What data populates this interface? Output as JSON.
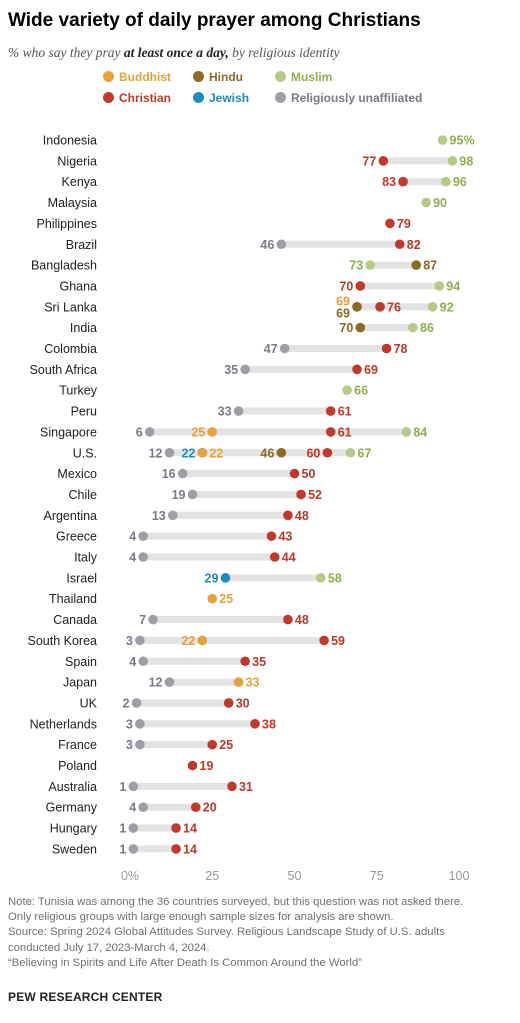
{
  "title": "Wide variety of daily prayer among Christians",
  "subtitle_prefix": "% who say they pray ",
  "subtitle_bold": "at least once a day,",
  "subtitle_suffix": " by religious identity",
  "colors": {
    "Buddhist": "#e8a23a",
    "Hindu": "#8a6a25",
    "Muslim": "#b5ca85",
    "Christian": "#c0392b",
    "Jewish": "#1c8dbf",
    "Religiously unaffiliated": "#a09ca8",
    "range_line": "#e3e3e3",
    "axis_text": "#999999"
  },
  "label_colors": {
    "Buddhist": "#e8a23a",
    "Hindu": "#8a6a25",
    "Muslim": "#8fae4c",
    "Christian": "#c0392b",
    "Jewish": "#1c8dbf",
    "Religiously unaffiliated": "#7d7886"
  },
  "legend": [
    {
      "name": "Buddhist",
      "label": "Buddhist"
    },
    {
      "name": "Hindu",
      "label": "Hindu"
    },
    {
      "name": "Muslim",
      "label": "Muslim"
    },
    {
      "name": "Christian",
      "label": "Christian"
    },
    {
      "name": "Jewish",
      "label": "Jewish"
    },
    {
      "name": "Religiously unaffiliated",
      "label": "Religiously unaffiliated"
    }
  ],
  "chart_data": {
    "type": "scatter",
    "subtype": "dot plot",
    "xlim": [
      0,
      100
    ],
    "ticks": [
      0,
      25,
      50,
      75,
      100
    ],
    "tick_labels": [
      "0%",
      "25",
      "50",
      "75",
      "100"
    ],
    "grid": false,
    "legend_position": "top",
    "countries": [
      "Indonesia",
      "Nigeria",
      "Kenya",
      "Malaysia",
      "Philippines",
      "Brazil",
      "Bangladesh",
      "Ghana",
      "Sri Lanka",
      "India",
      "Colombia",
      "South Africa",
      "Turkey",
      "Peru",
      "Singapore",
      "U.S.",
      "Mexico",
      "Chile",
      "Argentina",
      "Greece",
      "Italy",
      "Israel",
      "Thailand",
      "Canada",
      "South Korea",
      "Spain",
      "Japan",
      "UK",
      "Netherlands",
      "France",
      "Poland",
      "Australia",
      "Germany",
      "Hungary",
      "Sweden"
    ],
    "rows": [
      {
        "country": "Indonesia",
        "points": [
          {
            "group": "Muslim",
            "value": 95,
            "label": "95%",
            "side": "right"
          }
        ]
      },
      {
        "country": "Nigeria",
        "points": [
          {
            "group": "Christian",
            "value": 77,
            "label": "77",
            "side": "left"
          },
          {
            "group": "Muslim",
            "value": 98,
            "label": "98",
            "side": "right"
          }
        ]
      },
      {
        "country": "Kenya",
        "points": [
          {
            "group": "Christian",
            "value": 83,
            "label": "83",
            "side": "left"
          },
          {
            "group": "Muslim",
            "value": 96,
            "label": "96",
            "side": "right"
          }
        ]
      },
      {
        "country": "Malaysia",
        "points": [
          {
            "group": "Muslim",
            "value": 90,
            "label": "90",
            "side": "right"
          }
        ]
      },
      {
        "country": "Philippines",
        "points": [
          {
            "group": "Christian",
            "value": 79,
            "label": "79",
            "side": "right"
          }
        ]
      },
      {
        "country": "Brazil",
        "points": [
          {
            "group": "Religiously unaffiliated",
            "value": 46,
            "label": "46",
            "side": "left"
          },
          {
            "group": "Christian",
            "value": 82,
            "label": "82",
            "side": "right"
          }
        ]
      },
      {
        "country": "Bangladesh",
        "points": [
          {
            "group": "Muslim",
            "value": 73,
            "label": "73",
            "side": "left"
          },
          {
            "group": "Hindu",
            "value": 87,
            "label": "87",
            "side": "right"
          }
        ]
      },
      {
        "country": "Ghana",
        "points": [
          {
            "group": "Christian",
            "value": 70,
            "label": "70",
            "side": "left"
          },
          {
            "group": "Muslim",
            "value": 94,
            "label": "94",
            "side": "right"
          }
        ]
      },
      {
        "country": "Sri Lanka",
        "points": [
          {
            "group": "Buddhist",
            "value": 69,
            "label": "69",
            "side": "left",
            "dy": -6
          },
          {
            "group": "Hindu",
            "value": 69,
            "label": "69",
            "side": "left",
            "dy": 6
          },
          {
            "group": "Christian",
            "value": 76,
            "label": "76",
            "side": "right"
          },
          {
            "group": "Muslim",
            "value": 92,
            "label": "92",
            "side": "right"
          }
        ]
      },
      {
        "country": "India",
        "points": [
          {
            "group": "Hindu",
            "value": 70,
            "label": "70",
            "side": "left"
          },
          {
            "group": "Muslim",
            "value": 86,
            "label": "86",
            "side": "right"
          }
        ]
      },
      {
        "country": "Colombia",
        "points": [
          {
            "group": "Religiously unaffiliated",
            "value": 47,
            "label": "47",
            "side": "left"
          },
          {
            "group": "Christian",
            "value": 78,
            "label": "78",
            "side": "right"
          }
        ]
      },
      {
        "country": "South Africa",
        "points": [
          {
            "group": "Religiously unaffiliated",
            "value": 35,
            "label": "35",
            "side": "left"
          },
          {
            "group": "Christian",
            "value": 69,
            "label": "69",
            "side": "right"
          }
        ]
      },
      {
        "country": "Turkey",
        "points": [
          {
            "group": "Muslim",
            "value": 66,
            "label": "66",
            "side": "right"
          }
        ]
      },
      {
        "country": "Peru",
        "points": [
          {
            "group": "Religiously unaffiliated",
            "value": 33,
            "label": "33",
            "side": "left"
          },
          {
            "group": "Christian",
            "value": 61,
            "label": "61",
            "side": "right"
          }
        ]
      },
      {
        "country": "Singapore",
        "points": [
          {
            "group": "Religiously unaffiliated",
            "value": 6,
            "label": "6",
            "side": "left"
          },
          {
            "group": "Buddhist",
            "value": 25,
            "label": "25",
            "side": "left"
          },
          {
            "group": "Christian",
            "value": 61,
            "label": "61",
            "side": "right"
          },
          {
            "group": "Muslim",
            "value": 84,
            "label": "84",
            "side": "right"
          }
        ]
      },
      {
        "country": "U.S.",
        "points": [
          {
            "group": "Religiously unaffiliated",
            "value": 12,
            "label": "12",
            "side": "left"
          },
          {
            "group": "Jewish",
            "value": 22,
            "label": "22",
            "side": "left"
          },
          {
            "group": "Buddhist",
            "value": 22,
            "label": "22",
            "side": "right"
          },
          {
            "group": "Hindu",
            "value": 46,
            "label": "46",
            "side": "left"
          },
          {
            "group": "Christian",
            "value": 60,
            "label": "60",
            "side": "left"
          },
          {
            "group": "Muslim",
            "value": 67,
            "label": "67",
            "side": "right"
          }
        ]
      },
      {
        "country": "Mexico",
        "points": [
          {
            "group": "Religiously unaffiliated",
            "value": 16,
            "label": "16",
            "side": "left"
          },
          {
            "group": "Christian",
            "value": 50,
            "label": "50",
            "side": "right"
          }
        ]
      },
      {
        "country": "Chile",
        "points": [
          {
            "group": "Religiously unaffiliated",
            "value": 19,
            "label": "19",
            "side": "left"
          },
          {
            "group": "Christian",
            "value": 52,
            "label": "52",
            "side": "right"
          }
        ]
      },
      {
        "country": "Argentina",
        "points": [
          {
            "group": "Religiously unaffiliated",
            "value": 13,
            "label": "13",
            "side": "left"
          },
          {
            "group": "Christian",
            "value": 48,
            "label": "48",
            "side": "right"
          }
        ]
      },
      {
        "country": "Greece",
        "points": [
          {
            "group": "Religiously unaffiliated",
            "value": 4,
            "label": "4",
            "side": "left"
          },
          {
            "group": "Christian",
            "value": 43,
            "label": "43",
            "side": "right"
          }
        ]
      },
      {
        "country": "Italy",
        "points": [
          {
            "group": "Religiously unaffiliated",
            "value": 4,
            "label": "4",
            "side": "left"
          },
          {
            "group": "Christian",
            "value": 44,
            "label": "44",
            "side": "right"
          }
        ]
      },
      {
        "country": "Israel",
        "points": [
          {
            "group": "Jewish",
            "value": 29,
            "label": "29",
            "side": "left"
          },
          {
            "group": "Muslim",
            "value": 58,
            "label": "58",
            "side": "right"
          }
        ]
      },
      {
        "country": "Thailand",
        "points": [
          {
            "group": "Buddhist",
            "value": 25,
            "label": "25",
            "side": "right"
          }
        ]
      },
      {
        "country": "Canada",
        "points": [
          {
            "group": "Religiously unaffiliated",
            "value": 7,
            "label": "7",
            "side": "left"
          },
          {
            "group": "Christian",
            "value": 48,
            "label": "48",
            "side": "right"
          }
        ]
      },
      {
        "country": "South Korea",
        "points": [
          {
            "group": "Religiously unaffiliated",
            "value": 3,
            "label": "3",
            "side": "left"
          },
          {
            "group": "Buddhist",
            "value": 22,
            "label": "22",
            "side": "left"
          },
          {
            "group": "Christian",
            "value": 59,
            "label": "59",
            "side": "right"
          }
        ]
      },
      {
        "country": "Spain",
        "points": [
          {
            "group": "Religiously unaffiliated",
            "value": 4,
            "label": "4",
            "side": "left"
          },
          {
            "group": "Christian",
            "value": 35,
            "label": "35",
            "side": "right"
          }
        ]
      },
      {
        "country": "Japan",
        "points": [
          {
            "group": "Religiously unaffiliated",
            "value": 12,
            "label": "12",
            "side": "left"
          },
          {
            "group": "Buddhist",
            "value": 33,
            "label": "33",
            "side": "right"
          }
        ]
      },
      {
        "country": "UK",
        "points": [
          {
            "group": "Religiously unaffiliated",
            "value": 2,
            "label": "2",
            "side": "left"
          },
          {
            "group": "Christian",
            "value": 30,
            "label": "30",
            "side": "right"
          }
        ]
      },
      {
        "country": "Netherlands",
        "points": [
          {
            "group": "Religiously unaffiliated",
            "value": 3,
            "label": "3",
            "side": "left"
          },
          {
            "group": "Christian",
            "value": 38,
            "label": "38",
            "side": "right"
          }
        ]
      },
      {
        "country": "France",
        "points": [
          {
            "group": "Religiously unaffiliated",
            "value": 3,
            "label": "3",
            "side": "left"
          },
          {
            "group": "Christian",
            "value": 25,
            "label": "25",
            "side": "right"
          }
        ]
      },
      {
        "country": "Poland",
        "points": [
          {
            "group": "Christian",
            "value": 19,
            "label": "19",
            "side": "right"
          }
        ]
      },
      {
        "country": "Australia",
        "points": [
          {
            "group": "Religiously unaffiliated",
            "value": 1,
            "label": "1",
            "side": "left"
          },
          {
            "group": "Christian",
            "value": 31,
            "label": "31",
            "side": "right"
          }
        ]
      },
      {
        "country": "Germany",
        "points": [
          {
            "group": "Religiously unaffiliated",
            "value": 4,
            "label": "4",
            "side": "left"
          },
          {
            "group": "Christian",
            "value": 20,
            "label": "20",
            "side": "right"
          }
        ]
      },
      {
        "country": "Hungary",
        "points": [
          {
            "group": "Religiously unaffiliated",
            "value": 1,
            "label": "1",
            "side": "left"
          },
          {
            "group": "Christian",
            "value": 14,
            "label": "14",
            "side": "right"
          }
        ]
      },
      {
        "country": "Sweden",
        "points": [
          {
            "group": "Religiously unaffiliated",
            "value": 1,
            "label": "1",
            "side": "left"
          },
          {
            "group": "Christian",
            "value": 14,
            "label": "14",
            "side": "right"
          }
        ]
      }
    ]
  },
  "notes": [
    "Note: Tunisia was among the 36 countries surveyed, but this question was not asked there.",
    "Only religious groups with large enough sample sizes for analysis are shown.",
    "Source: Spring 2024 Global Attitudes Survey. Religious Landscape Study of U.S. adults",
    "conducted July 17, 2023-March 4, 2024.",
    "“Believing in Spirits and Life After Death Is Common Around the World”"
  ],
  "source_org": "PEW RESEARCH CENTER"
}
